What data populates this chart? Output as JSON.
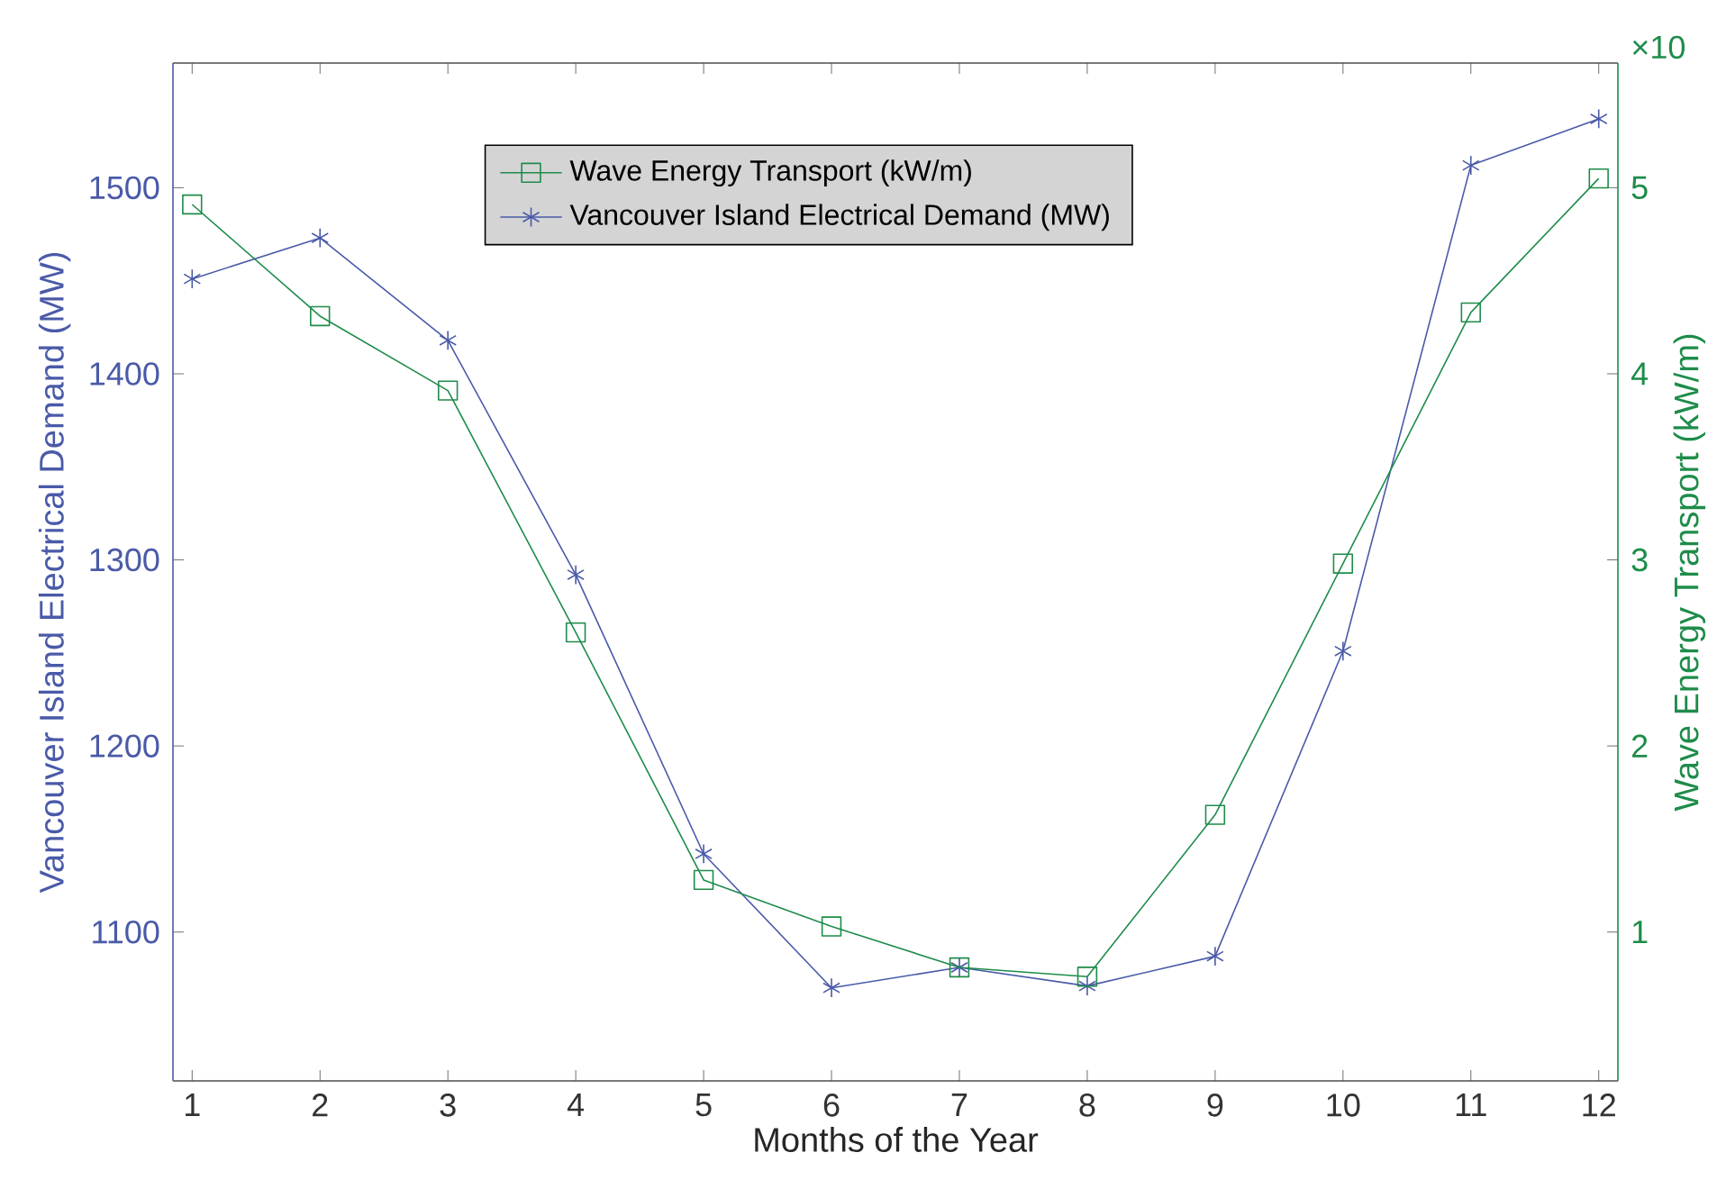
{
  "chart_data": {
    "type": "line",
    "xlabel": "Months of the Year",
    "ylabel": "Vancouver Island Electrical Demand (MW)",
    "y2label": "Wave Energy Transport (kW/m)",
    "annotations": [
      "×10"
    ],
    "x": [
      1,
      2,
      3,
      4,
      5,
      6,
      7,
      8,
      9,
      10,
      11,
      12
    ],
    "xlim": [
      0.85,
      12.15
    ],
    "xticks": [
      1,
      2,
      3,
      4,
      5,
      6,
      7,
      8,
      9,
      10,
      11,
      12
    ],
    "ylim": [
      1020,
      1567
    ],
    "yticks": [
      1100,
      1200,
      1300,
      1400,
      1500
    ],
    "y2lim": [
      0.2,
      5.67
    ],
    "y2ticks": [
      1,
      2,
      3,
      4,
      5
    ],
    "legend": "top",
    "line_style": "solid",
    "series": [
      {
        "name": "Wave Energy Transport (kW/m)",
        "color": "#1e8c4a",
        "axis": "y2",
        "marker": "square",
        "values": [
          4.91,
          4.31,
          3.91,
          2.61,
          1.28,
          1.03,
          0.81,
          0.76,
          1.63,
          2.98,
          4.33,
          5.05
        ]
      },
      {
        "name": "Vancouver Island Electrical Demand (MW)",
        "color": "#4a5aa8",
        "axis": "y",
        "marker": "cross",
        "values": [
          1451,
          1473,
          1418,
          1292,
          1142,
          1070,
          1081,
          1071,
          1087,
          1251,
          1512,
          1537
        ]
      }
    ]
  }
}
